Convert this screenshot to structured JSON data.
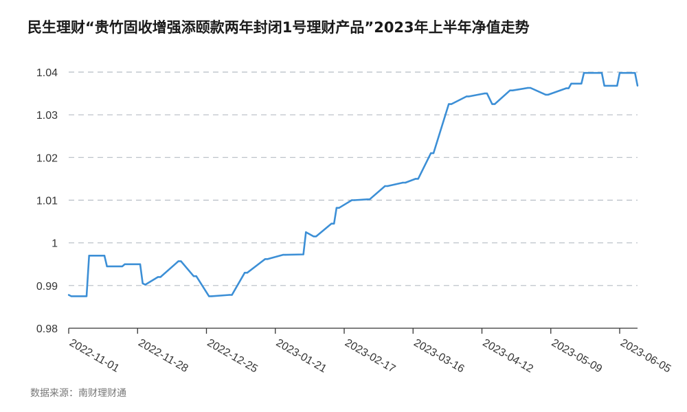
{
  "title": "民生理财“贵竹固收增强添颐款两年封闭1号理财产品”2023年上半年净值走势",
  "source": {
    "label": "数据来源：",
    "value": "南财理财通"
  },
  "colors": {
    "line": "#3c8fd6",
    "grid": "#b5bcc4",
    "axis": "#333333",
    "text": "#333333"
  },
  "chart_data": {
    "type": "line",
    "title": "民生理财“贵竹固收增强添颐款两年封闭1号理财产品”2023年上半年净值走势",
    "xlabel": "",
    "ylabel": "",
    "ylim": [
      0.98,
      1.04
    ],
    "yticks": [
      0.98,
      0.99,
      1,
      1.01,
      1.02,
      1.03,
      1.04
    ],
    "ytick_labels": [
      "0.98",
      "0.99",
      "1",
      "1.01",
      "1.02",
      "1.03",
      "1.04"
    ],
    "xlim": [
      "2022-11-01",
      "2023-06-12"
    ],
    "xticks": [
      "2022-11-01",
      "2022-11-28",
      "2022-12-25",
      "2023-01-21",
      "2023-02-17",
      "2023-03-16",
      "2023-04-12",
      "2023-05-09",
      "2023-06-05"
    ],
    "grid": true,
    "series": [
      {
        "x": [
          "2022-11-01",
          "2022-11-02",
          "2022-11-08",
          "2022-11-09",
          "2022-11-15",
          "2022-11-16",
          "2022-11-22",
          "2022-11-23",
          "2022-11-29",
          "2022-11-30",
          "2022-12-01",
          "2022-12-06",
          "2022-12-07",
          "2022-12-14",
          "2022-12-15",
          "2022-12-20",
          "2022-12-21",
          "2022-12-26",
          "2022-12-27",
          "2023-01-03",
          "2023-01-04",
          "2023-01-09",
          "2023-01-10",
          "2023-01-17",
          "2023-01-18",
          "2023-01-24",
          "2023-01-25",
          "2023-02-01",
          "2023-02-02",
          "2023-02-05",
          "2023-02-06",
          "2023-02-12",
          "2023-02-13",
          "2023-02-14",
          "2023-02-15",
          "2023-02-20",
          "2023-02-21",
          "2023-02-26",
          "2023-02-27",
          "2023-03-05",
          "2023-03-06",
          "2023-03-12",
          "2023-03-13",
          "2023-03-17",
          "2023-03-18",
          "2023-03-23",
          "2023-03-24",
          "2023-03-30",
          "2023-03-31",
          "2023-04-06",
          "2023-04-07",
          "2023-04-13",
          "2023-04-14",
          "2023-04-16",
          "2023-04-17",
          "2023-04-23",
          "2023-04-24",
          "2023-04-30",
          "2023-05-01",
          "2023-05-07",
          "2023-05-08",
          "2023-05-15",
          "2023-05-16",
          "2023-05-17",
          "2023-05-21",
          "2023-05-22",
          "2023-05-29",
          "2023-05-30",
          "2023-06-04",
          "2023-06-05",
          "2023-06-11",
          "2023-06-12"
        ],
        "values": [
          0.9878,
          0.9875,
          0.9875,
          0.997,
          0.997,
          0.9945,
          0.9945,
          0.995,
          0.995,
          0.9905,
          0.9902,
          0.992,
          0.992,
          0.9957,
          0.9957,
          0.9922,
          0.9922,
          0.9875,
          0.9875,
          0.9878,
          0.9878,
          0.993,
          0.993,
          0.9962,
          0.9962,
          0.9972,
          0.9972,
          0.9973,
          1.0025,
          1.0015,
          1.0015,
          1.0045,
          1.0045,
          1.0082,
          1.0082,
          1.01,
          1.01,
          1.0102,
          1.0102,
          1.0133,
          1.0133,
          1.0141,
          1.0141,
          1.015,
          1.015,
          1.021,
          1.021,
          1.0325,
          1.0325,
          1.0343,
          1.0343,
          1.035,
          1.035,
          1.0325,
          1.0325,
          1.0357,
          1.0357,
          1.0363,
          1.0363,
          1.0347,
          1.0347,
          1.0362,
          1.0362,
          1.0373,
          1.0373,
          1.0398,
          1.0398,
          1.0368,
          1.0368,
          1.0398,
          1.0398,
          1.0368
        ]
      }
    ]
  }
}
